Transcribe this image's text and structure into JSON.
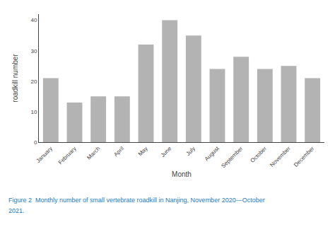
{
  "chart_data": {
    "type": "bar",
    "categories": [
      "January",
      "February",
      "March",
      "April",
      "May",
      "June",
      "July",
      "August",
      "September",
      "October",
      "November",
      "December"
    ],
    "values": [
      21,
      13,
      15,
      15,
      32,
      40,
      35,
      24,
      28,
      24,
      25,
      21
    ],
    "color": "#b3b3b3",
    "xlabel": "Month",
    "ylabel": "roadkill number",
    "ylim": [
      0,
      42
    ],
    "yticks": [
      0,
      10,
      20,
      30,
      40
    ],
    "grid": false,
    "annotations": [
      {
        "text": "Figure 2  Monthly number of small vertebrate roadkill in Nanjing, November 2020—October",
        "color": "#1a7bbf"
      },
      {
        "text": "2021.",
        "color": "#1a7bbf"
      }
    ]
  }
}
